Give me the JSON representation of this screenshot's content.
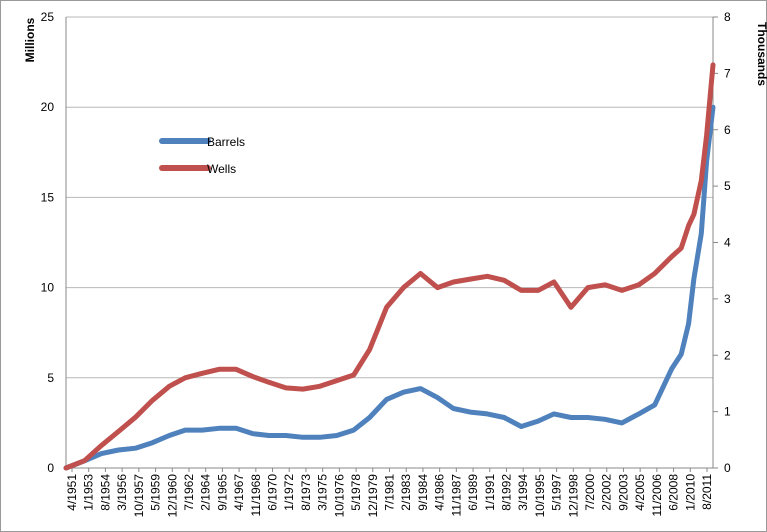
{
  "chart_data": {
    "type": "line",
    "title": "",
    "xlabel": "",
    "y_left_label": "Millions",
    "y_right_label": "Thousands",
    "y_left_ticks": [
      "0",
      "5",
      "10",
      "15",
      "20",
      "25"
    ],
    "y_right_ticks": [
      "0",
      "1",
      "2",
      "3",
      "4",
      "5",
      "6",
      "7",
      "8"
    ],
    "ylim_left": [
      0,
      25
    ],
    "ylim_right": [
      0,
      8
    ],
    "grid": "horizontal",
    "legend_position": "upper-left",
    "x_tick_labels": [
      "4/1951",
      "1/1953",
      "8/1954",
      "3/1956",
      "10/1957",
      "5/1959",
      "12/1960",
      "7/1962",
      "2/1964",
      "9/1965",
      "4/1967",
      "11/1968",
      "6/1970",
      "1/1972",
      "8/1973",
      "3/1975",
      "10/1976",
      "5/1978",
      "12/1979",
      "7/1981",
      "2/1983",
      "9/1984",
      "4/1986",
      "11/1987",
      "6/1989",
      "1/1991",
      "8/1992",
      "3/1994",
      "10/1995",
      "5/1997",
      "12/1998",
      "7/2000",
      "2/2002",
      "9/2003",
      "4/2005",
      "11/2006",
      "6/2008",
      "1/2010",
      "8/2011"
    ],
    "series": [
      {
        "name": "Barrels",
        "axis": "left",
        "units": "Millions",
        "color": "#4F81BD",
        "x": [
          1951.25,
          1953.0,
          1954.6,
          1956.2,
          1957.8,
          1959.4,
          1961.0,
          1962.5,
          1964.1,
          1965.7,
          1967.3,
          1968.9,
          1970.4,
          1972.0,
          1973.6,
          1975.2,
          1976.8,
          1978.4,
          1979.9,
          1981.5,
          1983.1,
          1984.7,
          1986.3,
          1987.8,
          1989.4,
          1991.0,
          1992.6,
          1994.2,
          1995.8,
          1997.3,
          1998.9,
          2000.5,
          2002.1,
          2003.7,
          2005.3,
          2006.8,
          2008.4,
          2009.3,
          2010.0,
          2010.5,
          2011.2,
          2011.7,
          2012.3
        ],
        "y": [
          0.0,
          0.4,
          0.8,
          1.0,
          1.1,
          1.4,
          1.8,
          2.1,
          2.1,
          2.2,
          2.2,
          1.9,
          1.8,
          1.8,
          1.7,
          1.7,
          1.8,
          2.1,
          2.8,
          3.8,
          4.2,
          4.4,
          3.9,
          3.3,
          3.1,
          3.0,
          2.8,
          2.3,
          2.6,
          3.0,
          2.8,
          2.8,
          2.7,
          2.5,
          3.0,
          3.5,
          5.5,
          6.3,
          8.0,
          10.5,
          13.0,
          17.0,
          20.0
        ]
      },
      {
        "name": "Wells",
        "axis": "right",
        "units": "Thousands",
        "color": "#C0504D",
        "x": [
          1951.25,
          1953.0,
          1954.6,
          1956.2,
          1957.8,
          1959.4,
          1961.0,
          1962.5,
          1964.1,
          1965.7,
          1967.3,
          1968.9,
          1970.4,
          1972.0,
          1973.6,
          1975.2,
          1976.8,
          1978.4,
          1979.9,
          1981.5,
          1983.1,
          1984.7,
          1986.3,
          1987.8,
          1989.4,
          1991.0,
          1992.6,
          1994.2,
          1995.8,
          1997.3,
          1998.9,
          2000.5,
          2002.1,
          2003.7,
          2005.3,
          2006.8,
          2008.4,
          2009.3,
          2010.0,
          2010.5,
          2011.2,
          2011.7,
          2012.3
        ],
        "y": [
          0.0,
          0.13,
          0.4,
          0.65,
          0.9,
          1.2,
          1.45,
          1.6,
          1.68,
          1.75,
          1.75,
          1.62,
          1.52,
          1.42,
          1.4,
          1.45,
          1.55,
          1.65,
          2.1,
          2.85,
          3.2,
          3.45,
          3.2,
          3.3,
          3.35,
          3.4,
          3.33,
          3.15,
          3.15,
          3.3,
          2.85,
          3.2,
          3.25,
          3.15,
          3.25,
          3.45,
          3.75,
          3.9,
          4.3,
          4.5,
          5.1,
          5.9,
          7.15
        ]
      }
    ]
  }
}
